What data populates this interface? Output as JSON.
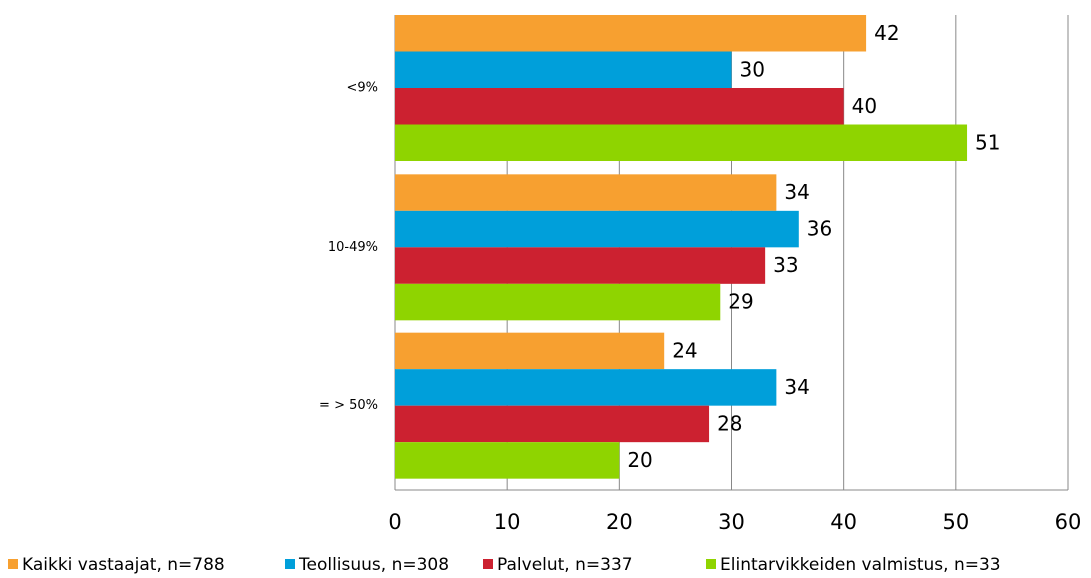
{
  "chart_data": {
    "type": "bar",
    "orientation": "horizontal",
    "categories": [
      "<9%",
      "10-49%",
      "= > 50%"
    ],
    "series": [
      {
        "name": "Kaikki vastaajat, n=788",
        "color": "#f7a030",
        "values": [
          42,
          34,
          24
        ]
      },
      {
        "name": "Teollisuus, n=308",
        "color": "#009fda",
        "values": [
          30,
          36,
          34
        ]
      },
      {
        "name": "Palvelut, n=337",
        "color": "#cc2130",
        "values": [
          40,
          33,
          28
        ]
      },
      {
        "name": "Elintarvikkeiden valmistus, n=33",
        "color": "#8fd400",
        "values": [
          51,
          29,
          20
        ]
      }
    ],
    "xlim": [
      0,
      60
    ],
    "xticks": [
      0,
      10,
      20,
      30,
      40,
      50,
      60
    ],
    "grid": true,
    "legend": "bottom"
  }
}
